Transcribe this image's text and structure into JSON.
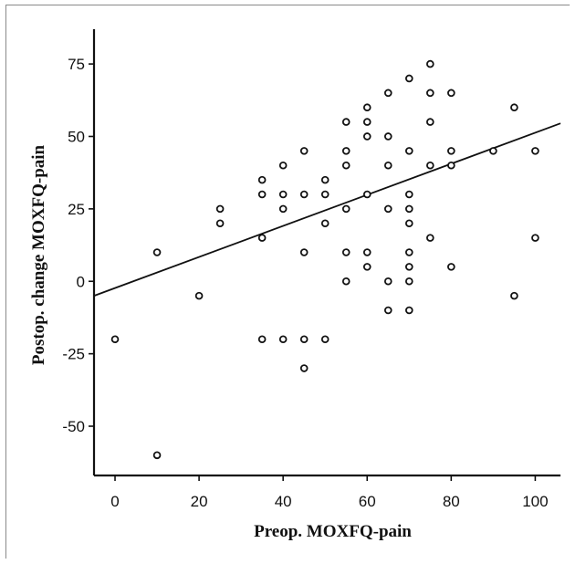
{
  "chart_data": {
    "type": "scatter",
    "title": "",
    "xlabel": "Preop. MOXFQ-pain",
    "ylabel": "Postop. change MOXFQ-pain",
    "xlim": [
      -5,
      106
    ],
    "ylim": [
      -67,
      87
    ],
    "x_ticks": [
      0,
      20,
      40,
      60,
      80,
      100
    ],
    "y_ticks": [
      75,
      50,
      25,
      0,
      -25,
      -50
    ],
    "x_tick_labels": [
      "0",
      "20",
      "40",
      "60",
      "80",
      "100"
    ],
    "y_tick_labels": [
      "75",
      "50",
      "25",
      "0",
      "-25",
      "-50"
    ],
    "grid": false,
    "legend": "none",
    "marker": "open-circle",
    "series": [
      {
        "points": [
          {
            "x": 0,
            "y": -20
          },
          {
            "x": 10,
            "y": 10
          },
          {
            "x": 10,
            "y": -60
          },
          {
            "x": 20,
            "y": -5
          },
          {
            "x": 25,
            "y": 25
          },
          {
            "x": 25,
            "y": 20
          },
          {
            "x": 35,
            "y": 35
          },
          {
            "x": 35,
            "y": 30
          },
          {
            "x": 35,
            "y": 15
          },
          {
            "x": 35,
            "y": -20
          },
          {
            "x": 40,
            "y": 40
          },
          {
            "x": 40,
            "y": 30
          },
          {
            "x": 40,
            "y": 25
          },
          {
            "x": 40,
            "y": -20
          },
          {
            "x": 45,
            "y": 45
          },
          {
            "x": 45,
            "y": 30
          },
          {
            "x": 45,
            "y": 10
          },
          {
            "x": 45,
            "y": -20
          },
          {
            "x": 45,
            "y": -30
          },
          {
            "x": 50,
            "y": 35
          },
          {
            "x": 50,
            "y": 30
          },
          {
            "x": 50,
            "y": 20
          },
          {
            "x": 50,
            "y": -20
          },
          {
            "x": 55,
            "y": 55
          },
          {
            "x": 55,
            "y": 45
          },
          {
            "x": 55,
            "y": 40
          },
          {
            "x": 55,
            "y": 25
          },
          {
            "x": 55,
            "y": 10
          },
          {
            "x": 55,
            "y": 0
          },
          {
            "x": 60,
            "y": 60
          },
          {
            "x": 60,
            "y": 55
          },
          {
            "x": 60,
            "y": 50
          },
          {
            "x": 60,
            "y": 30
          },
          {
            "x": 60,
            "y": 10
          },
          {
            "x": 60,
            "y": 5
          },
          {
            "x": 65,
            "y": 65
          },
          {
            "x": 65,
            "y": 50
          },
          {
            "x": 65,
            "y": 40
          },
          {
            "x": 65,
            "y": 25
          },
          {
            "x": 65,
            "y": 0
          },
          {
            "x": 65,
            "y": -10
          },
          {
            "x": 70,
            "y": 70
          },
          {
            "x": 70,
            "y": 45
          },
          {
            "x": 70,
            "y": 30
          },
          {
            "x": 70,
            "y": 25
          },
          {
            "x": 70,
            "y": 20
          },
          {
            "x": 70,
            "y": 10
          },
          {
            "x": 70,
            "y": 5
          },
          {
            "x": 70,
            "y": 0
          },
          {
            "x": 70,
            "y": -10
          },
          {
            "x": 75,
            "y": 75
          },
          {
            "x": 75,
            "y": 65
          },
          {
            "x": 75,
            "y": 55
          },
          {
            "x": 75,
            "y": 40
          },
          {
            "x": 75,
            "y": 15
          },
          {
            "x": 80,
            "y": 65
          },
          {
            "x": 80,
            "y": 45
          },
          {
            "x": 80,
            "y": 40
          },
          {
            "x": 80,
            "y": 5
          },
          {
            "x": 90,
            "y": 45
          },
          {
            "x": 95,
            "y": 60
          },
          {
            "x": 95,
            "y": -5
          },
          {
            "x": 100,
            "y": 45
          },
          {
            "x": 100,
            "y": 15
          }
        ]
      }
    ],
    "fit_line": {
      "x": [
        -5,
        106
      ],
      "y": [
        -5,
        54.5
      ]
    }
  }
}
